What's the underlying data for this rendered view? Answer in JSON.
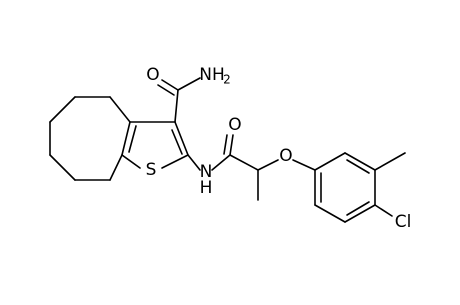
{
  "molecule": {
    "atoms": [
      {
        "label": "O"
      },
      {
        "label": "NH",
        "sub": "2"
      },
      {
        "label": "S"
      },
      {
        "label": "N"
      },
      {
        "label": "H"
      },
      {
        "label": "O"
      },
      {
        "label": "O"
      },
      {
        "label": "Cl"
      }
    ]
  }
}
